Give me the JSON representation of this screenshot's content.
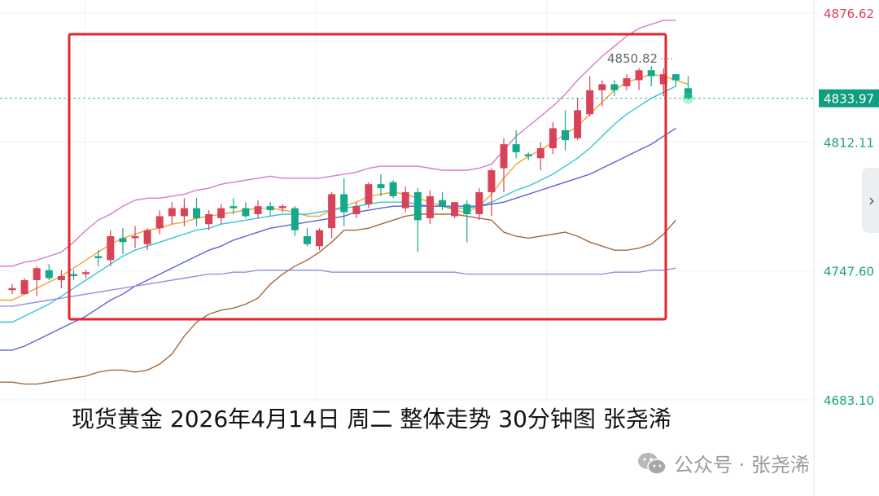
{
  "caption": "现货黄金 2026年4月14日 周二 整体走势 30分钟图 张尧浠",
  "watermark": {
    "text": "公众号 · 张尧浠",
    "icon": "wechat-icon"
  },
  "side_tab_icon": "chevron-right-icon",
  "colors": {
    "up": "#d9435a",
    "down": "#15a88a",
    "ma_orange": "#f0a23c",
    "ma_cyan": "#35c4d4",
    "ma_blue": "#5b63d3",
    "ma_purple": "#9a8ce6",
    "ma_brown": "#a36a3e",
    "boll_upper": "#d67ad0",
    "box": "#e0262e",
    "price_label_bg": "#119e80",
    "axis_text_green": "#1aa37e",
    "axis_text_red": "#d9435a"
  },
  "chart_data": {
    "type": "candlestick",
    "y_axis_labels": [
      {
        "value": 4876.62,
        "label": "4876.62",
        "color": "red"
      },
      {
        "value": 4812.11,
        "label": "4812.11",
        "color": "green"
      },
      {
        "value": 4747.6,
        "label": "4747.60",
        "color": "green"
      },
      {
        "value": 4683.1,
        "label": "4683.10",
        "color": "green"
      }
    ],
    "current_price": 4833.97,
    "high_marker": 4850.82,
    "ylim": [
      4669,
      4880
    ],
    "candles": [
      [
        4738,
        4741,
        4736,
        4739
      ],
      [
        4736,
        4744,
        4736,
        4743
      ],
      [
        4743,
        4750,
        4735,
        4749
      ],
      [
        4748,
        4751,
        4743,
        4744
      ],
      [
        4743,
        4748,
        4739,
        4745
      ],
      [
        4746,
        4748,
        4743,
        4745
      ],
      [
        4746,
        4748,
        4744,
        4747
      ],
      [
        4755,
        4758,
        4750,
        4754
      ],
      [
        4753,
        4768,
        4750,
        4765
      ],
      [
        4764,
        4769,
        4756,
        4762
      ],
      [
        4764,
        4770,
        4759,
        4765
      ],
      [
        4761,
        4769,
        4758,
        4768
      ],
      [
        4769,
        4778,
        4766,
        4775
      ],
      [
        4775,
        4782,
        4771,
        4779
      ],
      [
        4775,
        4784,
        4770,
        4779
      ],
      [
        4779,
        4784,
        4770,
        4774
      ],
      [
        4771,
        4778,
        4768,
        4776
      ],
      [
        4774,
        4781,
        4771,
        4779
      ],
      [
        4780,
        4784,
        4776,
        4779
      ],
      [
        4779,
        4782,
        4774,
        4775
      ],
      [
        4776,
        4783,
        4774,
        4780
      ],
      [
        4780,
        4782,
        4775,
        4778
      ],
      [
        4779,
        4781,
        4777,
        4780
      ],
      [
        4779,
        4780,
        4765,
        4768
      ],
      [
        4765,
        4769,
        4760,
        4761
      ],
      [
        4760,
        4769,
        4758,
        4768
      ],
      [
        4769,
        4787,
        4764,
        4786
      ],
      [
        4786,
        4794,
        4770,
        4777
      ],
      [
        4776,
        4782,
        4774,
        4780
      ],
      [
        4781,
        4792,
        4779,
        4791
      ],
      [
        4791,
        4796,
        4785,
        4789
      ],
      [
        4792,
        4793,
        4784,
        4785
      ],
      [
        4779,
        4790,
        4777,
        4787
      ],
      [
        4787,
        4789,
        4757,
        4773
      ],
      [
        4774,
        4788,
        4771,
        4785
      ],
      [
        4783,
        4787,
        4778,
        4780
      ],
      [
        4775,
        4782,
        4774,
        4782
      ],
      [
        4781,
        4783,
        4762,
        4776
      ],
      [
        4776,
        4789,
        4773,
        4787
      ],
      [
        4787,
        4799,
        4775,
        4798
      ],
      [
        4799,
        4814,
        4787,
        4811
      ],
      [
        4811,
        4818,
        4804,
        4807
      ],
      [
        4806,
        4807,
        4803,
        4805
      ],
      [
        4804,
        4812,
        4798,
        4809
      ],
      [
        4809,
        4822,
        4806,
        4819
      ],
      [
        4818,
        4828,
        4808,
        4813
      ],
      [
        4814,
        4834,
        4813,
        4828
      ],
      [
        4826,
        4845,
        4825,
        4838
      ],
      [
        4838,
        4843,
        4830,
        4841
      ],
      [
        4841,
        4843,
        4835,
        4838
      ],
      [
        4840,
        4846,
        4838,
        4844
      ],
      [
        4843,
        4849,
        4838,
        4848
      ],
      [
        4848,
        4850,
        4840,
        4845
      ],
      [
        4841,
        4849,
        4835,
        4846
      ],
      [
        4846,
        4846,
        4840,
        4843
      ],
      [
        4839,
        4845,
        4833,
        4834
      ]
    ],
    "ma_series": [
      {
        "color": "boll_upper",
        "values": [
          4750,
          4752,
          4753,
          4755,
          4757,
          4762,
          4768,
          4773,
          4776,
          4780,
          4783,
          4784,
          4784,
          4785,
          4786,
          4788,
          4789,
          4791,
          4792,
          4793,
          4794,
          4795,
          4794,
          4794,
          4794,
          4794,
          4795,
          4796,
          4797,
          4799,
          4800,
          4800,
          4800,
          4800,
          4799,
          4798,
          4798,
          4798,
          4799,
          4801,
          4808,
          4815,
          4820,
          4825,
          4830,
          4836,
          4843,
          4849,
          4855,
          4860,
          4865,
          4869,
          4871,
          4873,
          4873
        ]
      },
      {
        "color": "ma_orange",
        "values": [
          4733,
          4736,
          4739,
          4742,
          4745,
          4749,
          4753,
          4757,
          4761,
          4764,
          4766,
          4768,
          4769,
          4771,
          4772,
          4774,
          4775,
          4776,
          4777,
          4778,
          4779,
          4779,
          4778,
          4777,
          4775,
          4775,
          4778,
          4780,
          4782,
          4785,
          4786,
          4787,
          4786,
          4784,
          4782,
          4780,
          4778,
          4777,
          4780,
          4786,
          4794,
          4801,
          4805,
          4808,
          4812,
          4816,
          4820,
          4826,
          4832,
          4838,
          4842,
          4844,
          4846,
          4845,
          4843,
          4841
        ]
      },
      {
        "color": "ma_cyan",
        "values": [
          4722,
          4725,
          4728,
          4731,
          4735,
          4739,
          4743,
          4747,
          4751,
          4755,
          4758,
          4760,
          4762,
          4764,
          4766,
          4768,
          4769,
          4771,
          4772,
          4773,
          4774,
          4775,
          4776,
          4776,
          4776,
          4777,
          4778,
          4779,
          4780,
          4781,
          4782,
          4782,
          4782,
          4781,
          4780,
          4780,
          4779,
          4779,
          4780,
          4782,
          4785,
          4788,
          4790,
          4793,
          4796,
          4800,
          4804,
          4809,
          4815,
          4821,
          4826,
          4830,
          4834,
          4837,
          4840
        ]
      },
      {
        "color": "ma_blue",
        "values": [
          4708,
          4710,
          4713,
          4716,
          4719,
          4722,
          4725,
          4729,
          4733,
          4736,
          4740,
          4743,
          4746,
          4749,
          4752,
          4755,
          4758,
          4760,
          4763,
          4765,
          4767,
          4769,
          4770,
          4771,
          4772,
          4773,
          4774,
          4775,
          4777,
          4778,
          4779,
          4780,
          4780,
          4780,
          4780,
          4780,
          4780,
          4780,
          4780,
          4781,
          4782,
          4784,
          4786,
          4788,
          4790,
          4792,
          4794,
          4796,
          4799,
          4802,
          4805,
          4808,
          4811,
          4815,
          4819
        ]
      },
      {
        "color": "ma_purple",
        "values": [
          4730,
          4731,
          4732,
          4733,
          4734,
          4735,
          4736,
          4737,
          4738,
          4739,
          4740,
          4741,
          4742,
          4743,
          4744,
          4745,
          4746,
          4746,
          4747,
          4747,
          4748,
          4748,
          4748,
          4748,
          4748,
          4748,
          4747,
          4747,
          4747,
          4747,
          4747,
          4747,
          4747,
          4747,
          4747,
          4747,
          4747,
          4746,
          4746,
          4746,
          4746,
          4746,
          4746,
          4746,
          4746,
          4746,
          4746,
          4746,
          4746,
          4747,
          4747,
          4747,
          4748,
          4748,
          4749
        ]
      },
      {
        "color": "ma_brown",
        "values": [
          4692,
          4691,
          4691,
          4692,
          4693,
          4694,
          4695,
          4697,
          4698,
          4698,
          4697,
          4698,
          4701,
          4706,
          4715,
          4722,
          4726,
          4728,
          4729,
          4731,
          4734,
          4741,
          4746,
          4750,
          4753,
          4757,
          4762,
          4768,
          4768,
          4769,
          4771,
          4773,
          4775,
          4776,
          4776,
          4776,
          4776,
          4775,
          4774,
          4773,
          4767,
          4765,
          4764,
          4765,
          4766,
          4767,
          4765,
          4762,
          4760,
          4758,
          4758,
          4759,
          4761,
          4766,
          4773
        ]
      }
    ]
  }
}
